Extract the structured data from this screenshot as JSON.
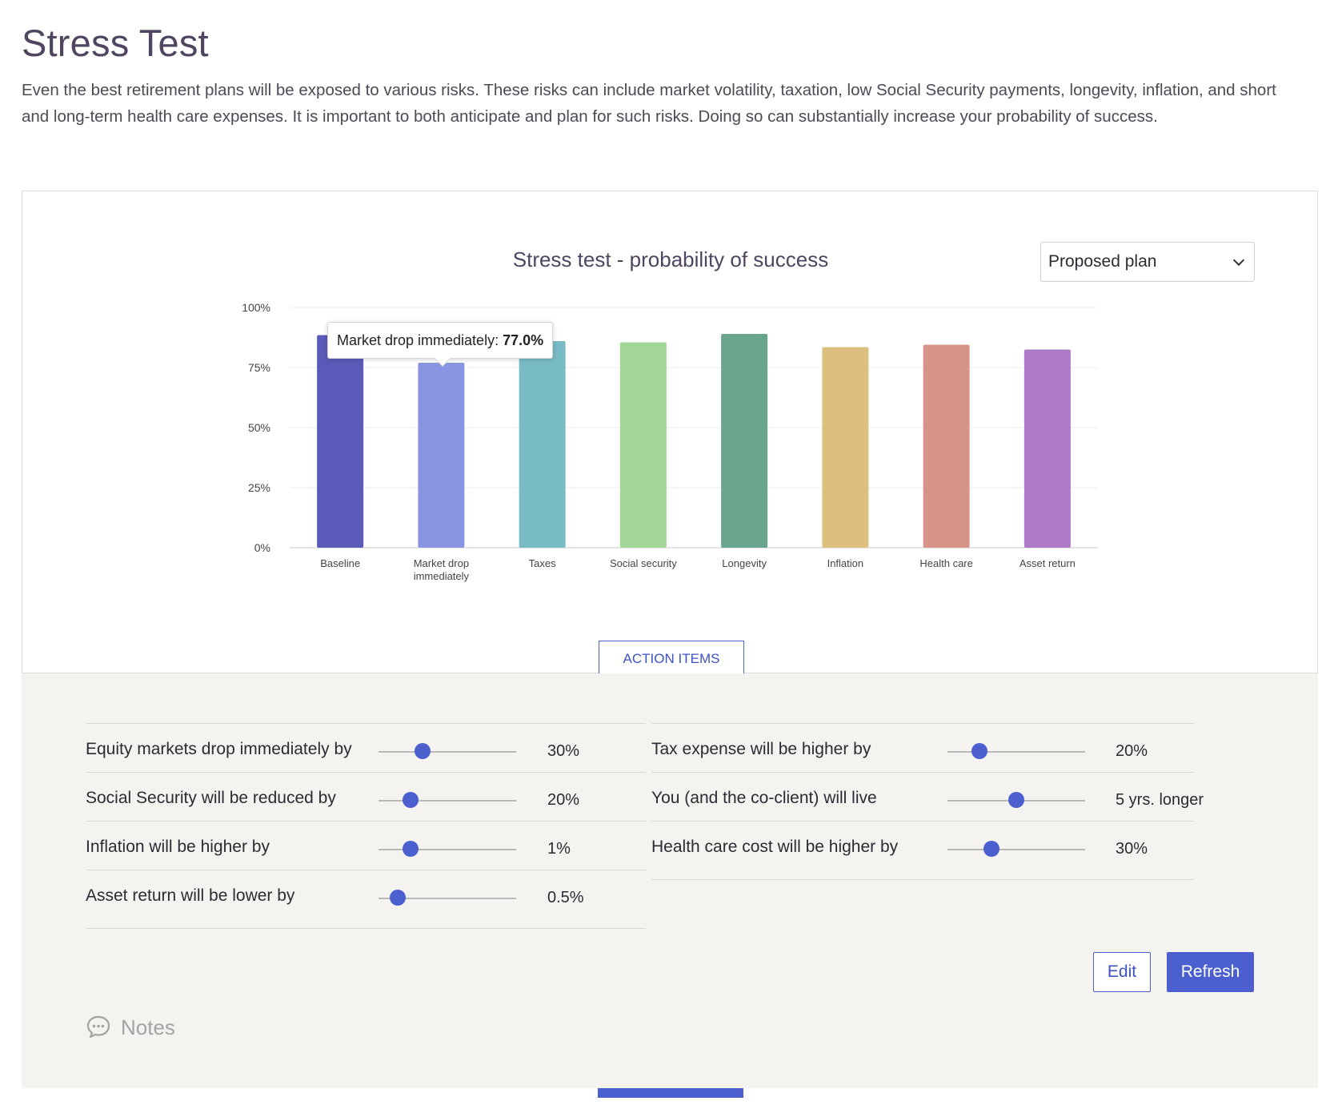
{
  "page": {
    "title": "Stress Test",
    "intro": "Even the best retirement plans will be exposed to various risks. These risks can include market volatility, taxation, low Social Security payments, longevity, inflation, and short and long-term health care expenses. It is important to both anticipate and plan for such risks. Doing so can substantially increase your probability of success."
  },
  "chart_card": {
    "plan_select": {
      "selected": "Proposed plan"
    },
    "tooltip": {
      "label": "Market drop immediately: ",
      "value": "77.0%"
    },
    "action_items_label": "ACTION ITEMS"
  },
  "chart_data": {
    "type": "bar",
    "title": "Stress test - probability of success",
    "categories": [
      "Baseline",
      "Market drop immediately",
      "Taxes",
      "Social security",
      "Longevity",
      "Inflation",
      "Health care",
      "Asset return"
    ],
    "category_lines": [
      [
        "Baseline"
      ],
      [
        "Market drop",
        "immediately"
      ],
      [
        "Taxes"
      ],
      [
        "Social security"
      ],
      [
        "Longevity"
      ],
      [
        "Inflation"
      ],
      [
        "Health care"
      ],
      [
        "Asset return"
      ]
    ],
    "values": [
      88.5,
      77.0,
      86.0,
      85.5,
      89.0,
      83.5,
      84.5,
      82.5
    ],
    "colors": [
      "#5b5ab9",
      "#8795e2",
      "#79bbc5",
      "#a1d697",
      "#69a48c",
      "#ddc07e",
      "#d69488",
      "#ae79c6"
    ],
    "ylim": [
      0,
      100
    ],
    "yticks": [
      0,
      25,
      50,
      75,
      100
    ],
    "ytick_labels": [
      "0%",
      "25%",
      "50%",
      "75%",
      "100%"
    ],
    "xlabel": "",
    "ylabel": "",
    "grid": true,
    "legend": "none"
  },
  "settings": {
    "left": [
      {
        "label": "Equity markets drop immediately by",
        "value": "30%",
        "level": 0.32
      },
      {
        "label": "Social Security will be reduced by",
        "value": "20%",
        "level": 0.23
      },
      {
        "label": "Inflation will be higher by",
        "value": "1%",
        "level": 0.23
      },
      {
        "label": "Asset return will be lower by",
        "value": "0.5%",
        "level": 0.14
      }
    ],
    "right": [
      {
        "label": "Tax expense will be higher by",
        "value": "20%",
        "level": 0.23
      },
      {
        "label": "You (and the co-client) will live",
        "value": "5 yrs. longer",
        "level": 0.5
      },
      {
        "label": "Health care cost will be higher by",
        "value": "30%",
        "level": 0.32
      }
    ]
  },
  "actions": {
    "edit_label": "Edit",
    "refresh_label": "Refresh"
  },
  "notes": {
    "label": "Notes"
  },
  "colors": {
    "accent": "#4b5fcf",
    "heading": "#4f4560",
    "panel_bg": "#f4f3f0"
  }
}
